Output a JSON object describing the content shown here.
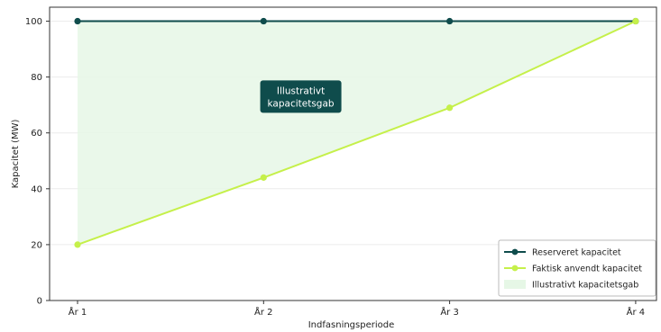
{
  "chart_data": {
    "type": "line",
    "title": "",
    "xlabel": "Indfasningsperiode",
    "ylabel": "Kapacitet (MW)",
    "categories": [
      "År 1",
      "År 2",
      "År 3",
      "År 4"
    ],
    "ylim": [
      0,
      105
    ],
    "yticks": [
      0,
      20,
      40,
      60,
      80,
      100
    ],
    "grid": true,
    "legend_position": "bottom-right",
    "series": [
      {
        "name": "Reserveret kapacitet",
        "values": [
          100,
          100,
          100,
          100
        ],
        "color": "#0f4c4c"
      },
      {
        "name": "Faktisk anvendt kapacitet",
        "values": [
          20,
          44,
          69,
          100
        ],
        "color": "#c5f04a"
      }
    ],
    "fill": {
      "name": "Illustrativt kapacitetsgab",
      "color": "#e6f7e6"
    },
    "annotation": {
      "lines": [
        "Illustrativt",
        "kapacitetsgab"
      ],
      "category_position": 1.2,
      "value": 73,
      "background": "#0f4c4c"
    }
  }
}
